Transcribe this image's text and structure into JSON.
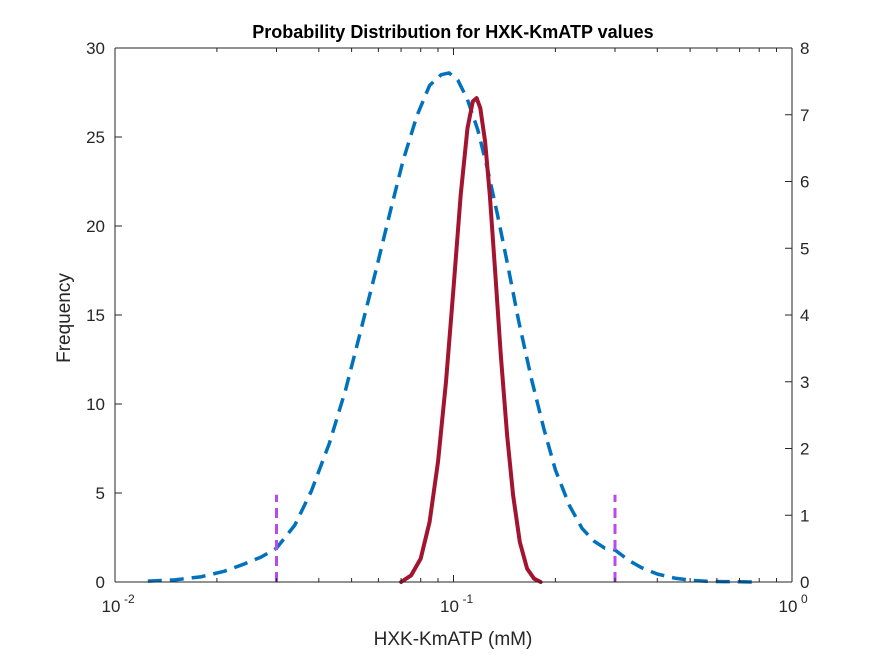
{
  "chart_data": {
    "type": "line",
    "title": "Probability Distribution for HXK-KmATP values",
    "xlabel": "HXK-KmATP (mM)",
    "ylabel": "Frequency",
    "x_scale": "log",
    "xlim": [
      0.01,
      1
    ],
    "ylim_left": [
      0,
      30
    ],
    "ylim_right": [
      0,
      8
    ],
    "x_ticks": [
      {
        "base": "10",
        "exp": "-2",
        "value": 0.01
      },
      {
        "base": "10",
        "exp": "-1",
        "value": 0.1
      },
      {
        "base": "10",
        "exp": "0",
        "value": 1
      }
    ],
    "y_ticks_left": [
      "0",
      "5",
      "10",
      "15",
      "20",
      "25",
      "30"
    ],
    "y_ticks_right": [
      "0",
      "1",
      "2",
      "3",
      "4",
      "5",
      "6",
      "7",
      "8"
    ],
    "grid": false,
    "series": [
      {
        "axis": "left",
        "style": "dashed",
        "color": "#0072BD",
        "x": [
          0.0125,
          0.015,
          0.018,
          0.021,
          0.024,
          0.027,
          0.03,
          0.034,
          0.038,
          0.043,
          0.048,
          0.053,
          0.059,
          0.065,
          0.071,
          0.078,
          0.085,
          0.092,
          0.097,
          0.103,
          0.11,
          0.118,
          0.126,
          0.135,
          0.145,
          0.156,
          0.17,
          0.185,
          0.2,
          0.22,
          0.24,
          0.26,
          0.28,
          0.3,
          0.33,
          0.36,
          0.4,
          0.45,
          0.5,
          0.56,
          0.63,
          0.7,
          0.78
        ],
        "y": [
          0.05,
          0.12,
          0.3,
          0.6,
          1.0,
          1.4,
          1.9,
          3.2,
          5.1,
          7.8,
          10.8,
          14.0,
          17.5,
          20.8,
          23.7,
          26.2,
          27.9,
          28.5,
          28.6,
          28.2,
          27.1,
          25.4,
          23.2,
          20.6,
          17.7,
          14.6,
          11.4,
          8.6,
          6.3,
          4.3,
          3.0,
          2.3,
          1.9,
          1.8,
          1.2,
          0.8,
          0.45,
          0.22,
          0.1,
          0.04,
          0.02,
          0.01,
          0.0
        ]
      },
      {
        "axis": "right",
        "style": "solid",
        "color": "#A2142F",
        "x": [
          0.07,
          0.075,
          0.08,
          0.085,
          0.09,
          0.095,
          0.1,
          0.105,
          0.11,
          0.114,
          0.117,
          0.12,
          0.124,
          0.128,
          0.133,
          0.138,
          0.144,
          0.15,
          0.157,
          0.165,
          0.173,
          0.181
        ],
        "y": [
          0.0,
          0.1,
          0.35,
          0.9,
          1.8,
          3.0,
          4.4,
          5.8,
          6.8,
          7.2,
          7.25,
          7.1,
          6.6,
          5.8,
          4.6,
          3.4,
          2.2,
          1.3,
          0.6,
          0.2,
          0.05,
          0.0
        ]
      },
      {
        "axis": "left",
        "style": "dashed-vertical",
        "color": "#B84BEE",
        "x": [
          0.03,
          0.03
        ],
        "y": [
          0,
          4.9
        ]
      },
      {
        "axis": "left",
        "style": "dashed-vertical",
        "color": "#B84BEE",
        "x": [
          0.3,
          0.3
        ],
        "y": [
          0,
          4.9
        ]
      }
    ]
  }
}
